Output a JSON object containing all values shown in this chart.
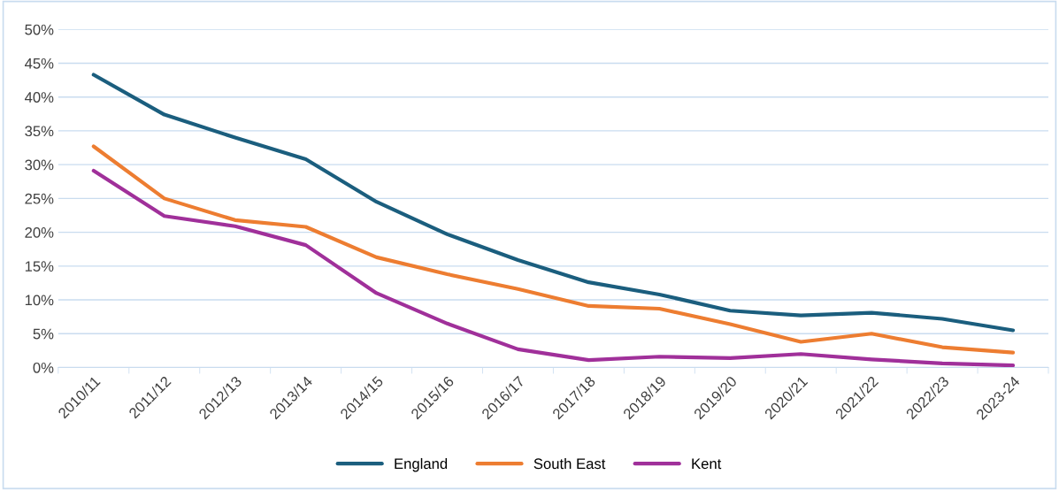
{
  "chart_data": {
    "type": "line",
    "categories": [
      "2010/11",
      "2011/12",
      "2012/13",
      "2013/14",
      "2014/15",
      "2015/16",
      "2016/17",
      "2017/18",
      "2018/19",
      "2019/20",
      "2020/21",
      "2021/22",
      "2022/23",
      "2023-24"
    ],
    "series": [
      {
        "name": "England",
        "color": "#1b5e7e",
        "values": [
          43.3,
          37.4,
          34.0,
          30.8,
          24.5,
          19.7,
          15.9,
          12.6,
          10.8,
          8.4,
          7.7,
          8.1,
          7.2,
          5.5
        ]
      },
      {
        "name": "South East",
        "color": "#ed7d31",
        "values": [
          32.7,
          25.0,
          21.8,
          20.8,
          16.3,
          13.8,
          11.6,
          9.1,
          8.7,
          6.4,
          3.8,
          5.0,
          3.0,
          2.2
        ]
      },
      {
        "name": "Kent",
        "color": "#a0309a",
        "values": [
          29.1,
          22.4,
          20.9,
          18.1,
          11.0,
          6.5,
          2.7,
          1.1,
          1.6,
          1.4,
          2.0,
          1.2,
          0.6,
          0.3
        ]
      }
    ],
    "ylim": [
      0,
      50
    ],
    "yticks": [
      {
        "value": 0,
        "label": "0%"
      },
      {
        "value": 5,
        "label": "5%"
      },
      {
        "value": 10,
        "label": "10%"
      },
      {
        "value": 15,
        "label": "15%"
      },
      {
        "value": 20,
        "label": "20%"
      },
      {
        "value": 25,
        "label": "25%"
      },
      {
        "value": 30,
        "label": "30%"
      },
      {
        "value": 35,
        "label": "35%"
      },
      {
        "value": 40,
        "label": "40%"
      },
      {
        "value": 45,
        "label": "45%"
      },
      {
        "value": 50,
        "label": "50%"
      }
    ],
    "grid": "y",
    "legend": "bottom",
    "marker": "none",
    "line_style": "solid"
  }
}
